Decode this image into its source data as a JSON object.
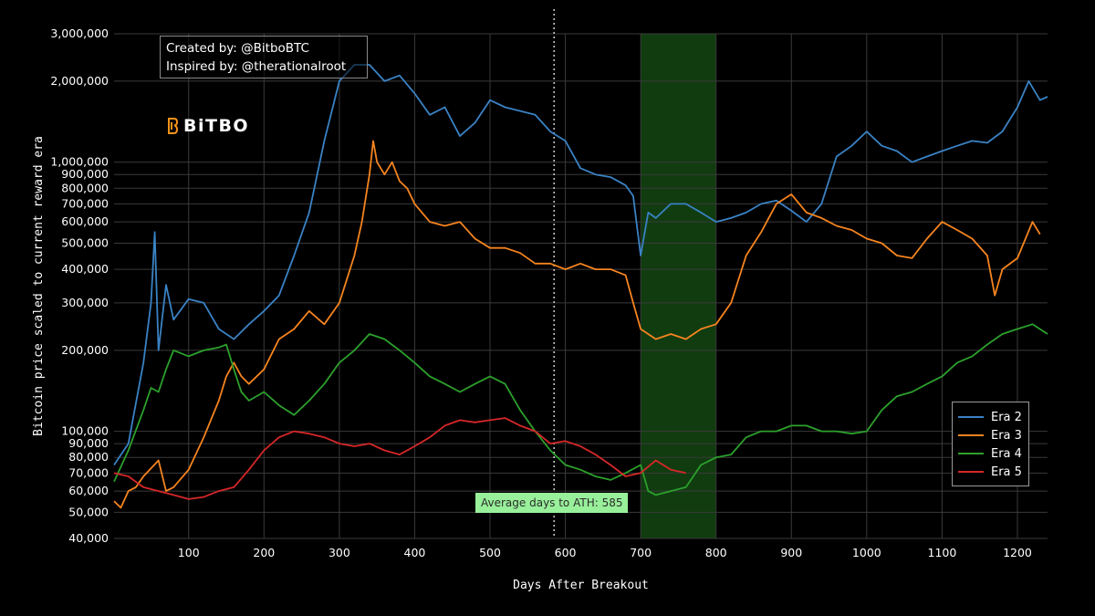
{
  "credits": {
    "created_by": "Created by: @BitboBTC",
    "inspired_by": "Inspired by: @therationalroot"
  },
  "logo": {
    "text": "BiTBO",
    "icon": "bitbo-logo-icon"
  },
  "annotation": {
    "ath_label": "Average days to ATH: 585"
  },
  "chart_data": {
    "type": "line",
    "xlabel": "Days After Breakout",
    "ylabel": "Bitcoin price scaled to current reward era",
    "y_scale": "log",
    "xlim": [
      1,
      1240
    ],
    "ylim": [
      40000,
      3000000
    ],
    "x_ticks": [
      100,
      200,
      300,
      400,
      500,
      600,
      700,
      800,
      900,
      1000,
      1100,
      1200
    ],
    "y_ticks": [
      40000,
      50000,
      60000,
      70000,
      80000,
      90000,
      100000,
      200000,
      300000,
      400000,
      500000,
      600000,
      700000,
      800000,
      900000,
      1000000,
      2000000,
      3000000
    ],
    "y_tick_labels": [
      "40,000",
      "50,000",
      "60,000",
      "70,000",
      "80,000",
      "90,000",
      "100,000",
      "200,000",
      "300,000",
      "400,000",
      "500,000",
      "600,000",
      "700,000",
      "800,000",
      "900,000",
      "1,000,000",
      "2,000,000",
      "3,000,000"
    ],
    "grid": true,
    "legend_position": "bottom-right",
    "vline": {
      "x": 585
    },
    "shaded_region": {
      "x": [
        700,
        800
      ],
      "color": "#1e6e1e"
    },
    "series": [
      {
        "name": "Era 2",
        "color": "#3a82c4",
        "points": [
          [
            1,
            75000
          ],
          [
            20,
            90000
          ],
          [
            40,
            180000
          ],
          [
            50,
            300000
          ],
          [
            55,
            550000
          ],
          [
            60,
            200000
          ],
          [
            70,
            350000
          ],
          [
            80,
            260000
          ],
          [
            100,
            310000
          ],
          [
            120,
            300000
          ],
          [
            140,
            240000
          ],
          [
            160,
            220000
          ],
          [
            180,
            250000
          ],
          [
            200,
            280000
          ],
          [
            220,
            320000
          ],
          [
            240,
            450000
          ],
          [
            260,
            650000
          ],
          [
            280,
            1200000
          ],
          [
            300,
            2000000
          ],
          [
            320,
            2300000
          ],
          [
            340,
            2300000
          ],
          [
            360,
            2000000
          ],
          [
            380,
            2100000
          ],
          [
            400,
            1800000
          ],
          [
            420,
            1500000
          ],
          [
            440,
            1600000
          ],
          [
            460,
            1250000
          ],
          [
            480,
            1400000
          ],
          [
            500,
            1700000
          ],
          [
            520,
            1600000
          ],
          [
            540,
            1550000
          ],
          [
            560,
            1500000
          ],
          [
            580,
            1300000
          ],
          [
            600,
            1200000
          ],
          [
            620,
            950000
          ],
          [
            640,
            900000
          ],
          [
            660,
            880000
          ],
          [
            680,
            820000
          ],
          [
            690,
            750000
          ],
          [
            700,
            450000
          ],
          [
            710,
            650000
          ],
          [
            720,
            620000
          ],
          [
            740,
            700000
          ],
          [
            760,
            700000
          ],
          [
            780,
            650000
          ],
          [
            800,
            600000
          ],
          [
            820,
            620000
          ],
          [
            840,
            650000
          ],
          [
            860,
            700000
          ],
          [
            880,
            720000
          ],
          [
            900,
            660000
          ],
          [
            920,
            600000
          ],
          [
            940,
            700000
          ],
          [
            960,
            1050000
          ],
          [
            980,
            1150000
          ],
          [
            1000,
            1300000
          ],
          [
            1020,
            1150000
          ],
          [
            1040,
            1100000
          ],
          [
            1060,
            1000000
          ],
          [
            1080,
            1050000
          ],
          [
            1100,
            1100000
          ],
          [
            1120,
            1150000
          ],
          [
            1140,
            1200000
          ],
          [
            1160,
            1180000
          ],
          [
            1180,
            1300000
          ],
          [
            1200,
            1600000
          ],
          [
            1215,
            2000000
          ],
          [
            1230,
            1700000
          ],
          [
            1240,
            1750000
          ]
        ]
      },
      {
        "name": "Era 3",
        "color": "#f5841f",
        "points": [
          [
            1,
            55000
          ],
          [
            10,
            52000
          ],
          [
            20,
            60000
          ],
          [
            30,
            62000
          ],
          [
            40,
            68000
          ],
          [
            60,
            78000
          ],
          [
            70,
            60000
          ],
          [
            80,
            62000
          ],
          [
            100,
            72000
          ],
          [
            120,
            95000
          ],
          [
            140,
            130000
          ],
          [
            150,
            160000
          ],
          [
            160,
            180000
          ],
          [
            170,
            160000
          ],
          [
            180,
            150000
          ],
          [
            200,
            170000
          ],
          [
            220,
            220000
          ],
          [
            240,
            240000
          ],
          [
            260,
            280000
          ],
          [
            280,
            250000
          ],
          [
            300,
            300000
          ],
          [
            320,
            450000
          ],
          [
            330,
            600000
          ],
          [
            340,
            900000
          ],
          [
            345,
            1200000
          ],
          [
            350,
            1000000
          ],
          [
            360,
            900000
          ],
          [
            370,
            1000000
          ],
          [
            380,
            850000
          ],
          [
            390,
            800000
          ],
          [
            400,
            700000
          ],
          [
            420,
            600000
          ],
          [
            440,
            580000
          ],
          [
            460,
            600000
          ],
          [
            480,
            520000
          ],
          [
            500,
            480000
          ],
          [
            520,
            480000
          ],
          [
            540,
            460000
          ],
          [
            560,
            420000
          ],
          [
            580,
            420000
          ],
          [
            600,
            400000
          ],
          [
            620,
            420000
          ],
          [
            640,
            400000
          ],
          [
            660,
            400000
          ],
          [
            680,
            380000
          ],
          [
            690,
            300000
          ],
          [
            700,
            240000
          ],
          [
            720,
            220000
          ],
          [
            740,
            230000
          ],
          [
            760,
            220000
          ],
          [
            780,
            240000
          ],
          [
            800,
            250000
          ],
          [
            820,
            300000
          ],
          [
            840,
            450000
          ],
          [
            860,
            550000
          ],
          [
            880,
            700000
          ],
          [
            900,
            760000
          ],
          [
            920,
            650000
          ],
          [
            940,
            620000
          ],
          [
            960,
            580000
          ],
          [
            980,
            560000
          ],
          [
            1000,
            520000
          ],
          [
            1020,
            500000
          ],
          [
            1040,
            450000
          ],
          [
            1060,
            440000
          ],
          [
            1080,
            520000
          ],
          [
            1100,
            600000
          ],
          [
            1120,
            560000
          ],
          [
            1140,
            520000
          ],
          [
            1160,
            450000
          ],
          [
            1170,
            320000
          ],
          [
            1180,
            400000
          ],
          [
            1200,
            440000
          ],
          [
            1220,
            600000
          ],
          [
            1230,
            540000
          ]
        ]
      },
      {
        "name": "Era 4",
        "color": "#2ca02c",
        "points": [
          [
            1,
            65000
          ],
          [
            20,
            85000
          ],
          [
            40,
            120000
          ],
          [
            50,
            145000
          ],
          [
            60,
            140000
          ],
          [
            70,
            170000
          ],
          [
            80,
            200000
          ],
          [
            100,
            190000
          ],
          [
            120,
            200000
          ],
          [
            140,
            205000
          ],
          [
            150,
            210000
          ],
          [
            160,
            170000
          ],
          [
            170,
            140000
          ],
          [
            180,
            130000
          ],
          [
            200,
            140000
          ],
          [
            220,
            125000
          ],
          [
            240,
            115000
          ],
          [
            260,
            130000
          ],
          [
            280,
            150000
          ],
          [
            300,
            180000
          ],
          [
            320,
            200000
          ],
          [
            340,
            230000
          ],
          [
            360,
            220000
          ],
          [
            380,
            200000
          ],
          [
            400,
            180000
          ],
          [
            420,
            160000
          ],
          [
            440,
            150000
          ],
          [
            460,
            140000
          ],
          [
            480,
            150000
          ],
          [
            500,
            160000
          ],
          [
            520,
            150000
          ],
          [
            540,
            120000
          ],
          [
            560,
            100000
          ],
          [
            580,
            85000
          ],
          [
            600,
            75000
          ],
          [
            620,
            72000
          ],
          [
            640,
            68000
          ],
          [
            660,
            66000
          ],
          [
            680,
            70000
          ],
          [
            700,
            75000
          ],
          [
            710,
            60000
          ],
          [
            720,
            58000
          ],
          [
            740,
            60000
          ],
          [
            760,
            62000
          ],
          [
            780,
            75000
          ],
          [
            800,
            80000
          ],
          [
            820,
            82000
          ],
          [
            840,
            95000
          ],
          [
            860,
            100000
          ],
          [
            880,
            100000
          ],
          [
            900,
            105000
          ],
          [
            920,
            105000
          ],
          [
            940,
            100000
          ],
          [
            960,
            100000
          ],
          [
            980,
            98000
          ],
          [
            1000,
            100000
          ],
          [
            1020,
            120000
          ],
          [
            1040,
            135000
          ],
          [
            1060,
            140000
          ],
          [
            1080,
            150000
          ],
          [
            1100,
            160000
          ],
          [
            1120,
            180000
          ],
          [
            1140,
            190000
          ],
          [
            1160,
            210000
          ],
          [
            1180,
            230000
          ],
          [
            1200,
            240000
          ],
          [
            1220,
            250000
          ],
          [
            1240,
            230000
          ]
        ]
      },
      {
        "name": "Era 5",
        "color": "#d62728",
        "points": [
          [
            1,
            70000
          ],
          [
            20,
            68000
          ],
          [
            40,
            62000
          ],
          [
            60,
            60000
          ],
          [
            80,
            58000
          ],
          [
            100,
            56000
          ],
          [
            120,
            57000
          ],
          [
            140,
            60000
          ],
          [
            160,
            62000
          ],
          [
            180,
            72000
          ],
          [
            200,
            85000
          ],
          [
            220,
            95000
          ],
          [
            240,
            100000
          ],
          [
            260,
            98000
          ],
          [
            280,
            95000
          ],
          [
            300,
            90000
          ],
          [
            320,
            88000
          ],
          [
            340,
            90000
          ],
          [
            360,
            85000
          ],
          [
            380,
            82000
          ],
          [
            400,
            88000
          ],
          [
            420,
            95000
          ],
          [
            440,
            105000
          ],
          [
            460,
            110000
          ],
          [
            480,
            108000
          ],
          [
            500,
            110000
          ],
          [
            520,
            112000
          ],
          [
            540,
            105000
          ],
          [
            560,
            100000
          ],
          [
            580,
            90000
          ],
          [
            600,
            92000
          ],
          [
            620,
            88000
          ],
          [
            640,
            82000
          ],
          [
            660,
            75000
          ],
          [
            680,
            68000
          ],
          [
            700,
            70000
          ],
          [
            720,
            78000
          ],
          [
            740,
            72000
          ],
          [
            760,
            70000
          ]
        ]
      }
    ]
  }
}
